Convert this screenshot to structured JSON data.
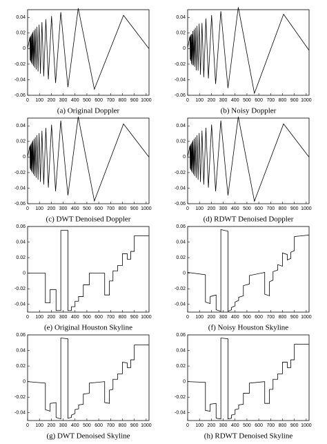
{
  "chart_data": [
    {
      "type": "line",
      "title": "(a) Original Doppler",
      "color": "#000000",
      "x": [
        0,
        19,
        22,
        24,
        27,
        30,
        33,
        37,
        40,
        44,
        49,
        54,
        59,
        65,
        72,
        79,
        88,
        97,
        108,
        121,
        136,
        154,
        175,
        202,
        236,
        280,
        340,
        427,
        563,
        809,
        1023
      ],
      "values": [
        0,
        0.0143,
        -0.0151,
        0.016,
        -0.0168,
        0.0177,
        -0.0186,
        0.0195,
        -0.0204,
        0.0214,
        -0.0224,
        0.0234,
        -0.0245,
        0.0256,
        -0.0268,
        0.028,
        -0.0294,
        0.0308,
        -0.0323,
        0.0339,
        -0.0356,
        0.0375,
        -0.0395,
        0.0418,
        -0.0442,
        0.0468,
        -0.0495,
        0.0518,
        -0.0522,
        0.0427,
        0
      ],
      "xlim": [
        0,
        1024
      ],
      "xticks": [
        0,
        100,
        200,
        300,
        400,
        500,
        600,
        700,
        800,
        900,
        1000
      ],
      "ylim": [
        -0.06,
        0.05
      ],
      "yticks": [
        -0.06,
        -0.04,
        -0.02,
        0,
        0.02,
        0.04
      ]
    },
    {
      "type": "line",
      "title": "(b) Noisy Doppler",
      "color": "#000000",
      "x": [
        0,
        19,
        22,
        24,
        27,
        30,
        33,
        37,
        40,
        44,
        49,
        54,
        59,
        65,
        72,
        79,
        88,
        97,
        108,
        121,
        136,
        154,
        175,
        202,
        236,
        280,
        340,
        427,
        563,
        809,
        1023
      ],
      "values": [
        0.001,
        0.0155,
        -0.014,
        0.0172,
        -0.0159,
        0.0188,
        -0.0197,
        0.0184,
        -0.0213,
        0.0226,
        -0.0215,
        0.0245,
        -0.0233,
        0.0268,
        -0.0279,
        0.0292,
        -0.0283,
        0.032,
        -0.0335,
        0.0328,
        -0.0368,
        0.0387,
        -0.0384,
        0.043,
        -0.0454,
        0.048,
        -0.0508,
        0.0531,
        -0.0575,
        0.0441,
        -0.002
      ],
      "xlim": [
        0,
        1024
      ],
      "xticks": [
        0,
        100,
        200,
        300,
        400,
        500,
        600,
        700,
        800,
        900,
        1000
      ],
      "ylim": [
        -0.06,
        0.05
      ],
      "yticks": [
        -0.06,
        -0.04,
        -0.02,
        0,
        0.02,
        0.04
      ]
    },
    {
      "type": "line",
      "title": "(c) DWT Denoised Doppler",
      "color": "#000000",
      "x": [
        0,
        19,
        22,
        24,
        27,
        30,
        33,
        37,
        40,
        44,
        49,
        54,
        59,
        65,
        72,
        79,
        88,
        97,
        108,
        121,
        136,
        154,
        175,
        202,
        236,
        280,
        340,
        427,
        563,
        809,
        1023
      ],
      "values": [
        0,
        0.0141,
        -0.0149,
        0.0158,
        -0.0166,
        0.0175,
        -0.0184,
        0.0193,
        -0.0202,
        0.0212,
        -0.0222,
        0.0232,
        -0.0243,
        0.0254,
        -0.0266,
        0.0278,
        -0.0292,
        0.0306,
        -0.0321,
        0.0337,
        -0.0354,
        0.0373,
        -0.0393,
        0.0416,
        -0.044,
        0.0466,
        -0.0493,
        0.0516,
        -0.0565,
        0.0425,
        0
      ],
      "xlim": [
        0,
        1024
      ],
      "xticks": [
        0,
        100,
        200,
        300,
        400,
        500,
        600,
        700,
        800,
        900,
        1000
      ],
      "ylim": [
        -0.06,
        0.05
      ],
      "yticks": [
        -0.06,
        -0.04,
        -0.02,
        0,
        0.02,
        0.04
      ]
    },
    {
      "type": "line",
      "title": "(d) RDWT Denoised Doppler",
      "color": "#000000",
      "x": [
        0,
        19,
        22,
        24,
        27,
        30,
        33,
        37,
        40,
        44,
        49,
        54,
        59,
        65,
        72,
        79,
        88,
        97,
        108,
        121,
        136,
        154,
        175,
        202,
        236,
        280,
        340,
        427,
        563,
        809,
        1023
      ],
      "values": [
        0,
        0.0142,
        -0.015,
        0.0159,
        -0.0167,
        0.0176,
        -0.0185,
        0.0194,
        -0.0203,
        0.0213,
        -0.0223,
        0.0233,
        -0.0244,
        0.0255,
        -0.0267,
        0.0279,
        -0.0293,
        0.0307,
        -0.0322,
        0.0338,
        -0.0355,
        0.0374,
        -0.0394,
        0.0417,
        -0.0441,
        0.0467,
        -0.0494,
        0.0517,
        -0.0568,
        0.0426,
        0
      ],
      "xlim": [
        0,
        1024
      ],
      "xticks": [
        0,
        100,
        200,
        300,
        400,
        500,
        600,
        700,
        800,
        900,
        1000
      ],
      "ylim": [
        -0.06,
        0.05
      ],
      "yticks": [
        -0.06,
        -0.04,
        -0.02,
        0,
        0.02,
        0.04
      ]
    },
    {
      "type": "line",
      "title": "(e) Original Houston Skyline",
      "color": "#000000",
      "x": [
        0,
        150,
        150,
        190,
        190,
        240,
        240,
        280,
        280,
        340,
        340,
        370,
        370,
        400,
        400,
        430,
        430,
        470,
        470,
        520,
        520,
        650,
        650,
        690,
        690,
        720,
        720,
        760,
        760,
        800,
        800,
        840,
        840,
        870,
        870,
        900,
        900,
        1023
      ],
      "values": [
        0,
        0,
        -0.038,
        -0.038,
        -0.021,
        -0.021,
        -0.048,
        -0.048,
        0.055,
        0.055,
        -0.048,
        -0.048,
        -0.043,
        -0.043,
        -0.036,
        -0.036,
        -0.03,
        -0.03,
        -0.015,
        -0.015,
        0,
        0,
        -0.028,
        -0.028,
        -0.01,
        -0.01,
        0.003,
        0.003,
        0.01,
        0.01,
        0.025,
        0.025,
        0.018,
        0.018,
        0.028,
        0.028,
        0.048,
        0.048
      ],
      "xlim": [
        0,
        1024
      ],
      "xticks": [
        0,
        100,
        200,
        300,
        400,
        500,
        600,
        700,
        800,
        900,
        1000
      ],
      "ylim": [
        -0.05,
        0.06
      ],
      "yticks": [
        -0.04,
        -0.02,
        0,
        0.02,
        0.04,
        0.06
      ]
    },
    {
      "type": "line",
      "title": "(f) Noisy Houston Skyline",
      "color": "#000000",
      "x": [
        0,
        150,
        150,
        190,
        190,
        240,
        240,
        280,
        280,
        340,
        340,
        370,
        370,
        400,
        400,
        430,
        430,
        470,
        470,
        520,
        520,
        650,
        650,
        690,
        690,
        720,
        720,
        760,
        760,
        800,
        800,
        840,
        840,
        870,
        870,
        900,
        900,
        1023
      ],
      "values": [
        0.001,
        -0.002,
        -0.037,
        -0.039,
        -0.03,
        -0.028,
        -0.047,
        -0.049,
        0.056,
        0.054,
        -0.049,
        -0.047,
        -0.044,
        -0.042,
        -0.037,
        -0.035,
        -0.031,
        -0.029,
        -0.016,
        -0.014,
        -0.003,
        0.001,
        -0.027,
        -0.029,
        -0.011,
        -0.009,
        0.002,
        0.004,
        0.011,
        0.009,
        0.026,
        0.024,
        0.017,
        0.019,
        0.027,
        0.029,
        0.047,
        0.049
      ],
      "xlim": [
        0,
        1024
      ],
      "xticks": [
        0,
        100,
        200,
        300,
        400,
        500,
        600,
        700,
        800,
        900,
        1000
      ],
      "ylim": [
        -0.05,
        0.06
      ],
      "yticks": [
        -0.04,
        -0.02,
        0,
        0.02,
        0.04,
        0.06
      ]
    },
    {
      "type": "line",
      "title": "(g) DWT Denoised Skyline",
      "color": "#000000",
      "x": [
        0,
        150,
        150,
        190,
        190,
        240,
        240,
        280,
        280,
        340,
        340,
        370,
        370,
        400,
        400,
        430,
        430,
        470,
        470,
        520,
        520,
        650,
        650,
        690,
        690,
        720,
        720,
        760,
        760,
        800,
        800,
        840,
        840,
        870,
        870,
        900,
        900,
        1023
      ],
      "values": [
        0,
        -0.002,
        -0.036,
        -0.038,
        -0.028,
        -0.027,
        -0.046,
        -0.048,
        0.056,
        0.055,
        -0.047,
        -0.046,
        -0.043,
        -0.041,
        -0.036,
        -0.035,
        -0.03,
        -0.029,
        -0.016,
        -0.015,
        -0.002,
        0,
        -0.027,
        -0.028,
        -0.011,
        -0.01,
        0.003,
        0.003,
        0.01,
        0.01,
        0.025,
        0.024,
        0.018,
        0.018,
        0.028,
        0.028,
        0.047,
        0.047
      ],
      "xlim": [
        0,
        1024
      ],
      "xticks": [
        0,
        100,
        200,
        300,
        400,
        500,
        600,
        700,
        800,
        900,
        1000
      ],
      "ylim": [
        -0.05,
        0.06
      ],
      "yticks": [
        -0.04,
        -0.02,
        0,
        0.02,
        0.04,
        0.06
      ]
    },
    {
      "type": "line",
      "title": "(h) RDWT Denoised Skyline",
      "color": "#000000",
      "x": [
        0,
        150,
        150,
        190,
        190,
        240,
        240,
        280,
        280,
        340,
        340,
        370,
        370,
        400,
        400,
        430,
        430,
        470,
        470,
        520,
        520,
        650,
        650,
        690,
        690,
        720,
        720,
        760,
        760,
        800,
        800,
        840,
        840,
        870,
        870,
        900,
        900,
        1023
      ],
      "values": [
        0,
        -0.001,
        -0.037,
        -0.038,
        -0.029,
        -0.028,
        -0.047,
        -0.048,
        0.056,
        0.055,
        -0.048,
        -0.047,
        -0.043,
        -0.042,
        -0.036,
        -0.035,
        -0.03,
        -0.029,
        -0.015,
        -0.015,
        -0.002,
        0,
        -0.028,
        -0.028,
        -0.01,
        -0.01,
        0.003,
        0.003,
        0.01,
        0.01,
        0.025,
        0.025,
        0.018,
        0.018,
        0.028,
        0.028,
        0.048,
        0.048
      ],
      "xlim": [
        0,
        1024
      ],
      "xticks": [
        0,
        100,
        200,
        300,
        400,
        500,
        600,
        700,
        800,
        900,
        1000
      ],
      "ylim": [
        -0.05,
        0.06
      ],
      "yticks": [
        -0.04,
        -0.02,
        0,
        0.02,
        0.04,
        0.06
      ]
    }
  ]
}
